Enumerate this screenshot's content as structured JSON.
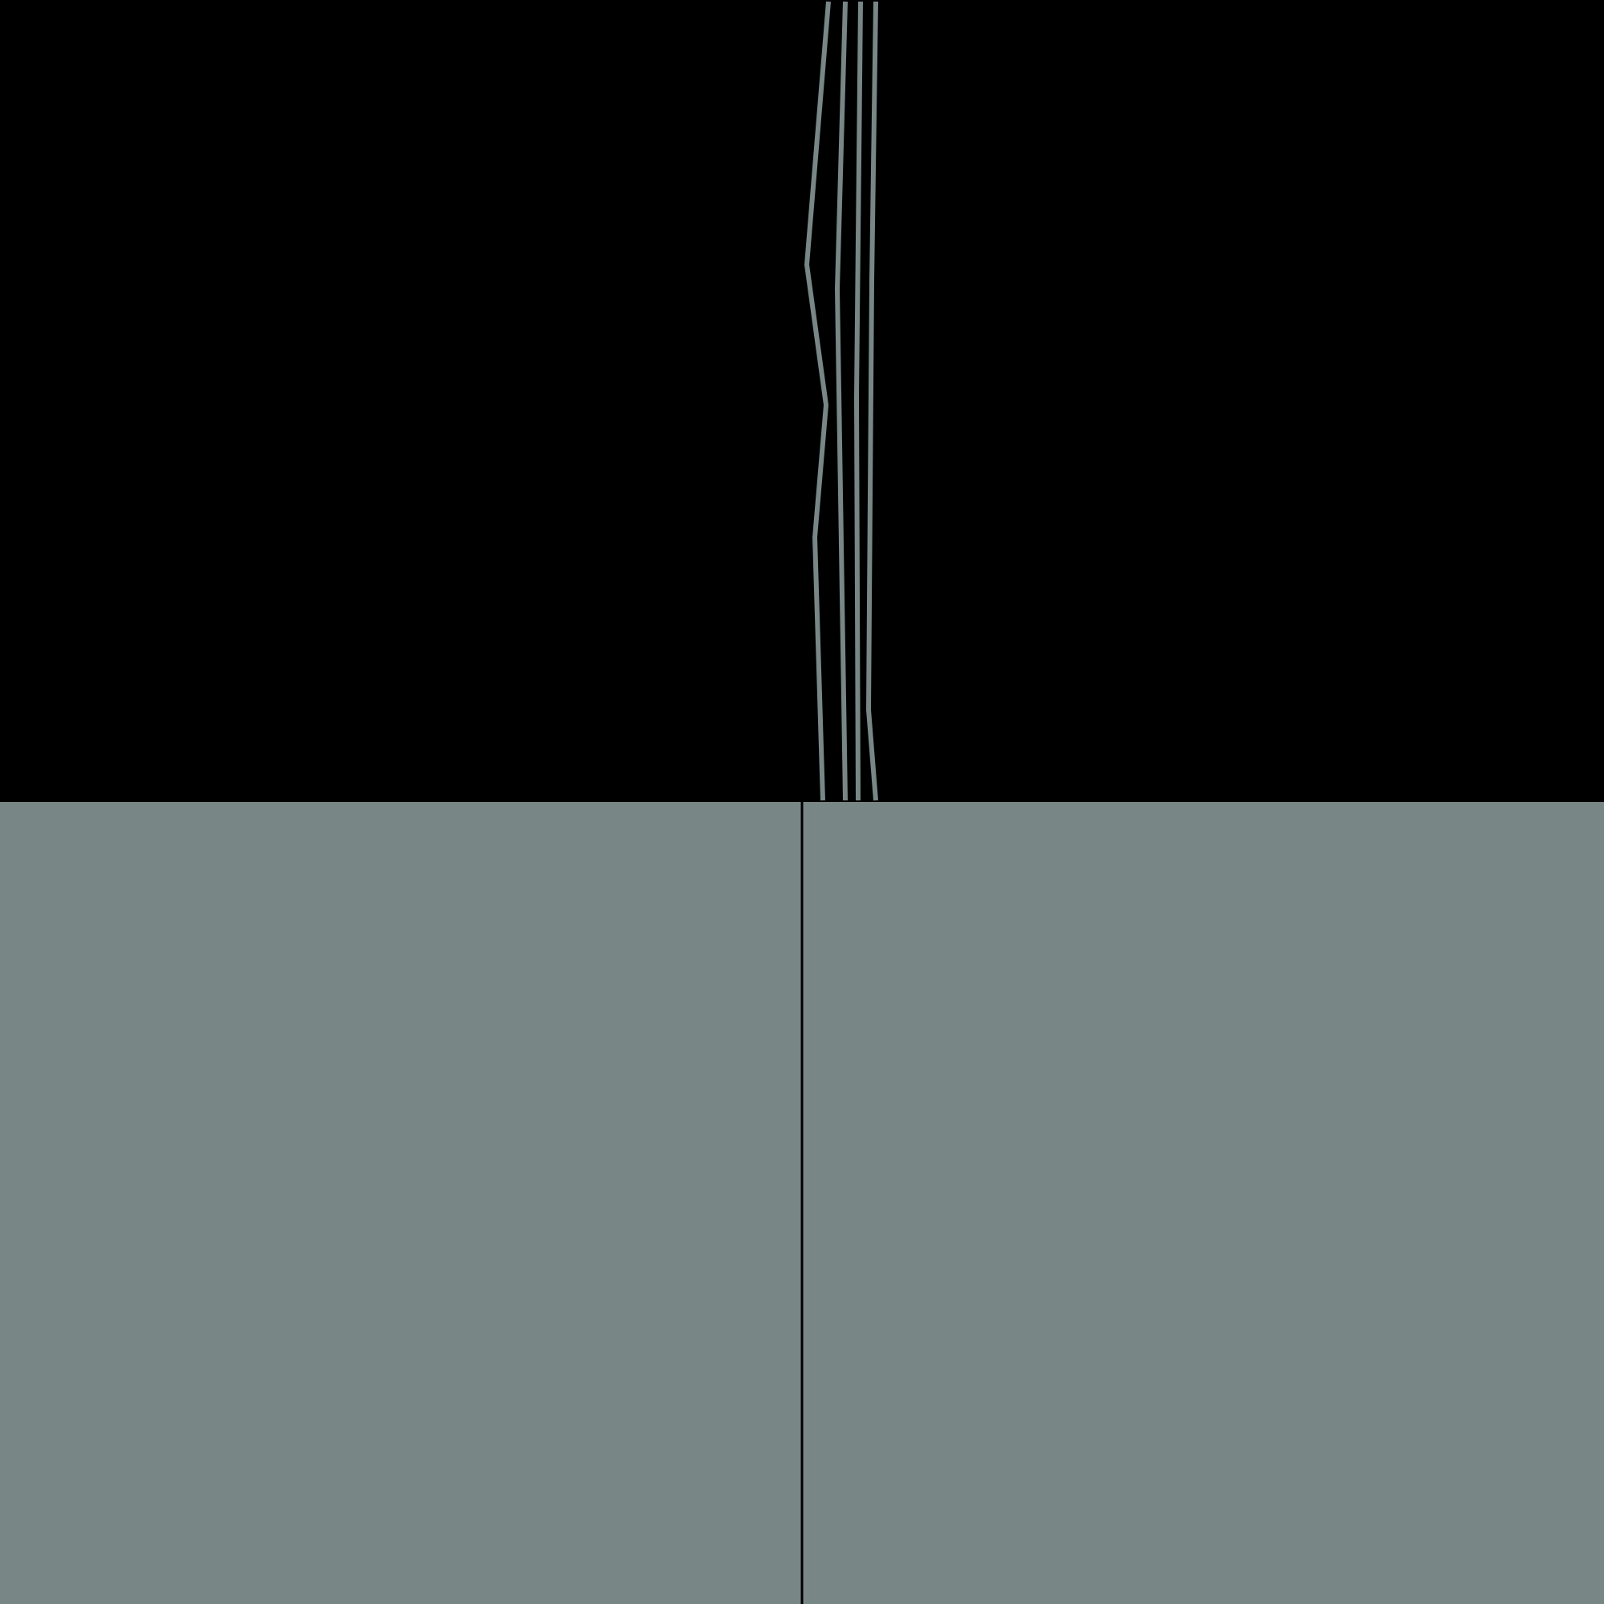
{
  "colors": {
    "background": "#000000",
    "tile": "#788686",
    "line": "#788686",
    "seam": "#000000"
  }
}
